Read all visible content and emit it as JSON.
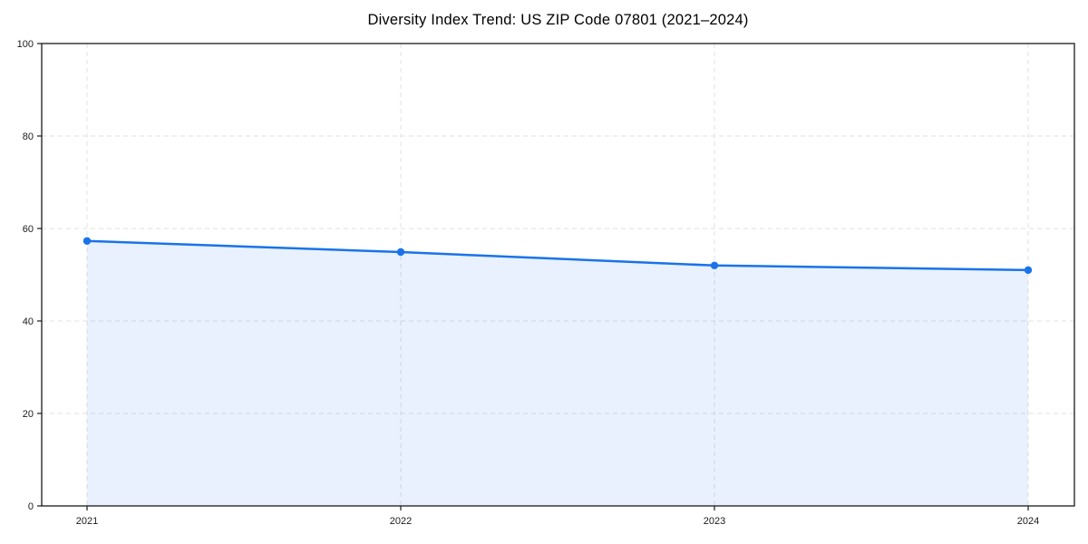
{
  "chart_data": {
    "type": "area",
    "title": "Diversity Index Trend: US ZIP Code 07801 (2021–2024)",
    "x": [
      2021,
      2022,
      2023,
      2024
    ],
    "series": [
      {
        "name": "Diversity Index",
        "values": [
          57.3,
          54.9,
          52.0,
          51.0
        ]
      }
    ],
    "xlabel": "",
    "ylabel": "",
    "ylim": [
      0,
      100
    ],
    "yticks": [
      0,
      20,
      40,
      60,
      80,
      100
    ],
    "xticks": [
      2021,
      2022,
      2023,
      2024
    ],
    "grid": true,
    "grid_style": "dashed",
    "legend": "none",
    "colors": {
      "line": "#1a73e8",
      "marker": "#1a73e8",
      "fill": "rgba(26,115,232,0.10)",
      "grid": "#e0e0e0",
      "spine": "#1a1a1a",
      "tick_label": "#1a1a1a",
      "title": "#000000",
      "background": "#ffffff"
    }
  }
}
